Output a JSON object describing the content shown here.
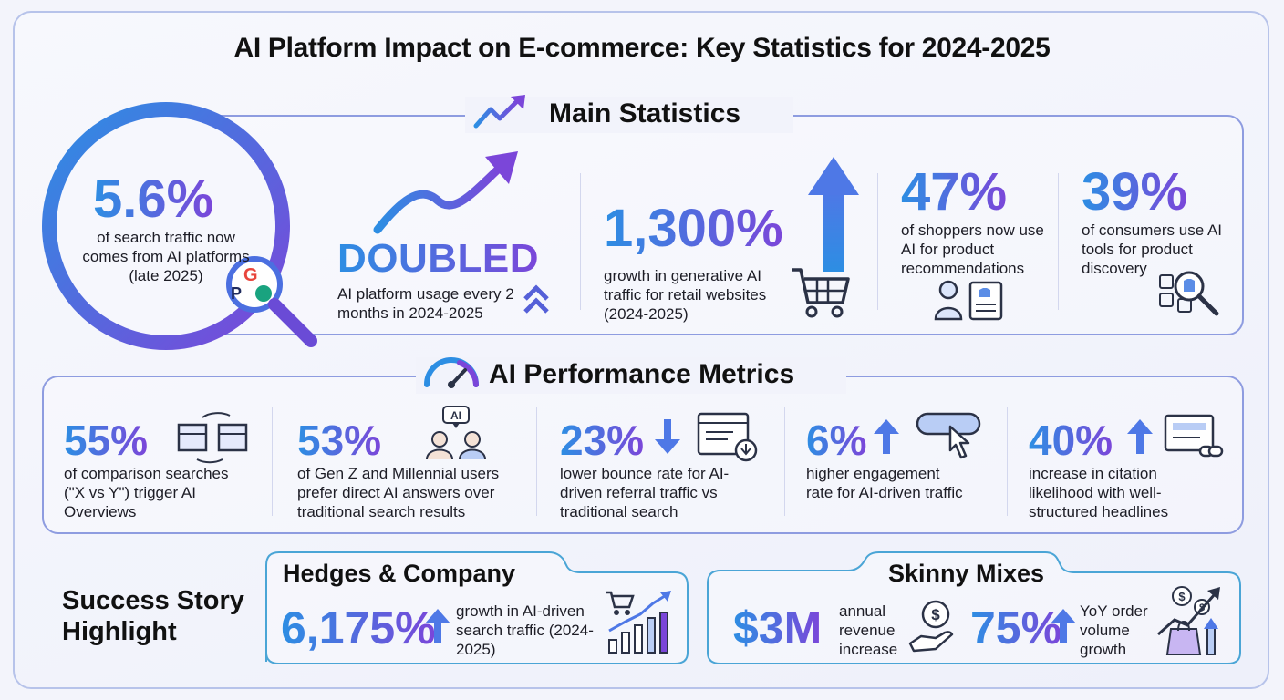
{
  "title": "AI Platform Impact on E-commerce: Key Statistics for 2024-2025",
  "main_section": {
    "title": "Main Statistics",
    "hero": {
      "value": "5.6%",
      "text": "of search traffic now comes from AI platforms (late 2025)"
    },
    "cards": [
      {
        "value": "DOUBLED",
        "text": "AI platform usage every 2 months in 2024-2025"
      },
      {
        "value": "1,300%",
        "text": "growth in generative AI traffic for retail websites (2024-2025)"
      },
      {
        "value": "47%",
        "text": "of shoppers now use AI for product recommendations"
      },
      {
        "value": "39%",
        "text": "of consumers use AI tools for product discovery"
      }
    ]
  },
  "metrics_section": {
    "title": "AI Performance Metrics",
    "cards": [
      {
        "value": "55%",
        "text": "of comparison searches (\"X vs Y\") trigger AI Overviews"
      },
      {
        "value": "53%",
        "text": "of Gen Z and Millennial users prefer direct AI answers over traditional search results",
        "icon_label": "AI"
      },
      {
        "value": "23%",
        "text": "lower bounce rate for AI-driven referral traffic vs traditional search"
      },
      {
        "value": "6%",
        "text": "higher engagement rate for AI-driven traffic"
      },
      {
        "value": "40%",
        "text": "increase in citation likelihood with well-structured headlines"
      }
    ]
  },
  "success": {
    "label": "Success Story Highlight",
    "hedges": {
      "name": "Hedges & Company",
      "value": "6,175%",
      "text": "growth in AI-driven search traffic (2024-2025)"
    },
    "skinny": {
      "name": "Skinny Mixes",
      "value1": "$3M",
      "text1": "annual revenue increase",
      "value2": "75%",
      "text2": "YoY order volume growth"
    }
  },
  "colors": {
    "blue": "#2d8ee3",
    "purple": "#7b46d9",
    "border": "#8e9ce0"
  }
}
